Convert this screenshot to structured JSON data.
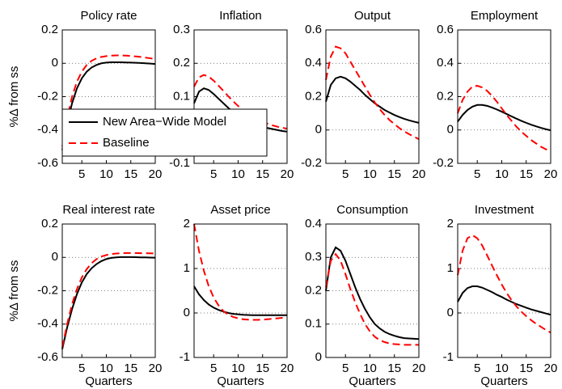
{
  "chart_data": [
    {
      "type": "line",
      "title": "Policy rate",
      "ylabel": "%Δ from ss",
      "legend": "lower left",
      "grid": true,
      "x": [
        1,
        2,
        3,
        4,
        5,
        6,
        7,
        8,
        9,
        10,
        11,
        12,
        13,
        14,
        15,
        16,
        17,
        18,
        19,
        20
      ],
      "xlim": [
        1,
        20
      ],
      "xticks": [
        5,
        10,
        15,
        20
      ],
      "ylim": [
        -0.6,
        0.2
      ],
      "yticks": [
        -0.6,
        -0.4,
        -0.2,
        0,
        0.2
      ],
      "series": [
        {
          "name": "New Area−Wide Model",
          "color": "#000000",
          "line_style": "solid",
          "values": [
            -0.52,
            -0.36,
            -0.24,
            -0.15,
            -0.09,
            -0.05,
            -0.025,
            -0.01,
            0,
            0.004,
            0.006,
            0.006,
            0.006,
            0.005,
            0.004,
            0.003,
            0.002,
            0.0,
            -0.002,
            -0.004
          ]
        },
        {
          "name": "Baseline",
          "color": "#ff0000",
          "line_style": "dashed",
          "values": [
            -0.5,
            -0.33,
            -0.2,
            -0.11,
            -0.05,
            -0.01,
            0.015,
            0.03,
            0.038,
            0.043,
            0.046,
            0.047,
            0.047,
            0.046,
            0.044,
            0.041,
            0.038,
            0.034,
            0.03,
            0.025
          ]
        }
      ]
    },
    {
      "type": "line",
      "title": "Inflation",
      "grid": true,
      "x": [
        1,
        2,
        3,
        4,
        5,
        6,
        7,
        8,
        9,
        10,
        11,
        12,
        13,
        14,
        15,
        16,
        17,
        18,
        19,
        20
      ],
      "xlim": [
        1,
        20
      ],
      "xticks": [
        5,
        10,
        15,
        20
      ],
      "ylim": [
        -0.1,
        0.3
      ],
      "yticks": [
        -0.1,
        0,
        0.1,
        0.2,
        0.3
      ],
      "series": [
        {
          "color": "#000000",
          "line_style": "solid",
          "values": [
            0.08,
            0.115,
            0.125,
            0.12,
            0.108,
            0.094,
            0.08,
            0.066,
            0.054,
            0.043,
            0.034,
            0.026,
            0.02,
            0.014,
            0.01,
            0.006,
            0.003,
            0.0,
            -0.003,
            -0.005
          ]
        },
        {
          "color": "#ff0000",
          "line_style": "dashed",
          "values": [
            0.13,
            0.158,
            0.165,
            0.16,
            0.148,
            0.133,
            0.117,
            0.101,
            0.086,
            0.072,
            0.06,
            0.049,
            0.04,
            0.032,
            0.025,
            0.019,
            0.014,
            0.01,
            0.007,
            0.004
          ]
        }
      ]
    },
    {
      "type": "line",
      "title": "Output",
      "grid": true,
      "x": [
        1,
        2,
        3,
        4,
        5,
        6,
        7,
        8,
        9,
        10,
        11,
        12,
        13,
        14,
        15,
        16,
        17,
        18,
        19,
        20
      ],
      "xlim": [
        1,
        20
      ],
      "xticks": [
        5,
        10,
        15,
        20
      ],
      "ylim": [
        -0.2,
        0.6
      ],
      "yticks": [
        -0.2,
        0,
        0.2,
        0.4,
        0.6
      ],
      "series": [
        {
          "color": "#000000",
          "line_style": "solid",
          "values": [
            0.17,
            0.27,
            0.31,
            0.32,
            0.31,
            0.29,
            0.265,
            0.24,
            0.21,
            0.185,
            0.16,
            0.14,
            0.12,
            0.105,
            0.09,
            0.078,
            0.067,
            0.058,
            0.05,
            0.043
          ]
        },
        {
          "color": "#ff0000",
          "line_style": "dashed",
          "values": [
            0.3,
            0.44,
            0.5,
            0.49,
            0.46,
            0.41,
            0.36,
            0.31,
            0.26,
            0.21,
            0.165,
            0.125,
            0.09,
            0.06,
            0.035,
            0.012,
            -0.008,
            -0.025,
            -0.04,
            -0.055
          ]
        }
      ]
    },
    {
      "type": "line",
      "title": "Employment",
      "grid": true,
      "x": [
        1,
        2,
        3,
        4,
        5,
        6,
        7,
        8,
        9,
        10,
        11,
        12,
        13,
        14,
        15,
        16,
        17,
        18,
        19,
        20
      ],
      "xlim": [
        1,
        20
      ],
      "xticks": [
        5,
        10,
        15,
        20
      ],
      "ylim": [
        -0.2,
        0.6
      ],
      "yticks": [
        -0.2,
        0,
        0.2,
        0.4,
        0.6
      ],
      "series": [
        {
          "color": "#000000",
          "line_style": "solid",
          "values": [
            0.05,
            0.09,
            0.12,
            0.14,
            0.15,
            0.15,
            0.145,
            0.135,
            0.123,
            0.11,
            0.096,
            0.082,
            0.068,
            0.055,
            0.043,
            0.032,
            0.022,
            0.013,
            0.005,
            -0.002
          ]
        },
        {
          "color": "#ff0000",
          "line_style": "dashed",
          "values": [
            0.1,
            0.18,
            0.23,
            0.26,
            0.265,
            0.255,
            0.235,
            0.205,
            0.17,
            0.13,
            0.09,
            0.055,
            0.02,
            -0.01,
            -0.035,
            -0.06,
            -0.08,
            -0.1,
            -0.115,
            -0.13
          ]
        }
      ]
    },
    {
      "type": "line",
      "title": "Real interest rate",
      "ylabel": "%Δ from ss",
      "xlabel": "Quarters",
      "grid": true,
      "x": [
        1,
        2,
        3,
        4,
        5,
        6,
        7,
        8,
        9,
        10,
        11,
        12,
        13,
        14,
        15,
        16,
        17,
        18,
        19,
        20
      ],
      "xlim": [
        1,
        20
      ],
      "xticks": [
        5,
        10,
        15,
        20
      ],
      "ylim": [
        -0.6,
        0.2
      ],
      "yticks": [
        -0.6,
        -0.4,
        -0.2,
        0,
        0.2
      ],
      "series": [
        {
          "color": "#000000",
          "line_style": "solid",
          "values": [
            -0.55,
            -0.42,
            -0.31,
            -0.22,
            -0.15,
            -0.1,
            -0.065,
            -0.04,
            -0.022,
            -0.01,
            -0.003,
            0.0,
            0.002,
            0.002,
            0.002,
            0.001,
            0.0,
            0.0,
            -0.001,
            -0.002
          ]
        },
        {
          "color": "#ff0000",
          "line_style": "dashed",
          "values": [
            -0.54,
            -0.4,
            -0.28,
            -0.19,
            -0.12,
            -0.07,
            -0.035,
            -0.01,
            0.005,
            0.014,
            0.02,
            0.023,
            0.025,
            0.026,
            0.026,
            0.026,
            0.025,
            0.025,
            0.024,
            0.023
          ]
        }
      ]
    },
    {
      "type": "line",
      "title": "Asset price",
      "xlabel": "Quarters",
      "grid": true,
      "x": [
        1,
        2,
        3,
        4,
        5,
        6,
        7,
        8,
        9,
        10,
        11,
        12,
        13,
        14,
        15,
        16,
        17,
        18,
        19,
        20
      ],
      "xlim": [
        1,
        20
      ],
      "xticks": [
        5,
        10,
        15,
        20
      ],
      "ylim": [
        -1,
        2
      ],
      "yticks": [
        -1,
        0,
        1,
        2
      ],
      "series": [
        {
          "color": "#000000",
          "line_style": "solid",
          "values": [
            0.6,
            0.42,
            0.29,
            0.19,
            0.12,
            0.07,
            0.03,
            0.0,
            -0.02,
            -0.03,
            -0.04,
            -0.045,
            -0.05,
            -0.05,
            -0.05,
            -0.05,
            -0.05,
            -0.05,
            -0.05,
            -0.05
          ]
        },
        {
          "color": "#ff0000",
          "line_style": "dashed",
          "values": [
            2.0,
            1.4,
            0.95,
            0.6,
            0.35,
            0.17,
            0.04,
            -0.04,
            -0.09,
            -0.12,
            -0.14,
            -0.15,
            -0.155,
            -0.155,
            -0.15,
            -0.14,
            -0.13,
            -0.12,
            -0.11,
            -0.1
          ]
        }
      ]
    },
    {
      "type": "line",
      "title": "Consumption",
      "xlabel": "Quarters",
      "grid": true,
      "x": [
        1,
        2,
        3,
        4,
        5,
        6,
        7,
        8,
        9,
        10,
        11,
        12,
        13,
        14,
        15,
        16,
        17,
        18,
        19,
        20
      ],
      "xlim": [
        1,
        20
      ],
      "xticks": [
        5,
        10,
        15,
        20
      ],
      "ylim": [
        0,
        0.4
      ],
      "yticks": [
        0,
        0.1,
        0.2,
        0.3,
        0.4
      ],
      "series": [
        {
          "color": "#000000",
          "line_style": "solid",
          "values": [
            0.2,
            0.3,
            0.33,
            0.32,
            0.29,
            0.25,
            0.21,
            0.175,
            0.145,
            0.12,
            0.1,
            0.087,
            0.077,
            0.07,
            0.065,
            0.061,
            0.058,
            0.057,
            0.056,
            0.055
          ]
        },
        {
          "color": "#ff0000",
          "line_style": "dashed",
          "values": [
            0.21,
            0.29,
            0.31,
            0.29,
            0.25,
            0.205,
            0.165,
            0.13,
            0.1,
            0.078,
            0.062,
            0.052,
            0.046,
            0.042,
            0.04,
            0.039,
            0.038,
            0.038,
            0.038,
            0.038
          ]
        }
      ]
    },
    {
      "type": "line",
      "title": "Investment",
      "xlabel": "Quarters",
      "grid": true,
      "x": [
        1,
        2,
        3,
        4,
        5,
        6,
        7,
        8,
        9,
        10,
        11,
        12,
        13,
        14,
        15,
        16,
        17,
        18,
        19,
        20
      ],
      "xlim": [
        1,
        20
      ],
      "xticks": [
        5,
        10,
        15,
        20
      ],
      "ylim": [
        -1,
        2
      ],
      "yticks": [
        -1,
        0,
        1,
        2
      ],
      "series": [
        {
          "color": "#000000",
          "line_style": "solid",
          "values": [
            0.25,
            0.45,
            0.56,
            0.6,
            0.6,
            0.57,
            0.52,
            0.47,
            0.41,
            0.36,
            0.3,
            0.25,
            0.2,
            0.16,
            0.12,
            0.08,
            0.05,
            0.02,
            -0.01,
            -0.04
          ]
        },
        {
          "color": "#ff0000",
          "line_style": "dashed",
          "values": [
            0.85,
            1.4,
            1.68,
            1.75,
            1.68,
            1.52,
            1.3,
            1.07,
            0.85,
            0.64,
            0.45,
            0.29,
            0.15,
            0.03,
            -0.07,
            -0.16,
            -0.24,
            -0.31,
            -0.38,
            -0.44
          ]
        }
      ]
    }
  ]
}
